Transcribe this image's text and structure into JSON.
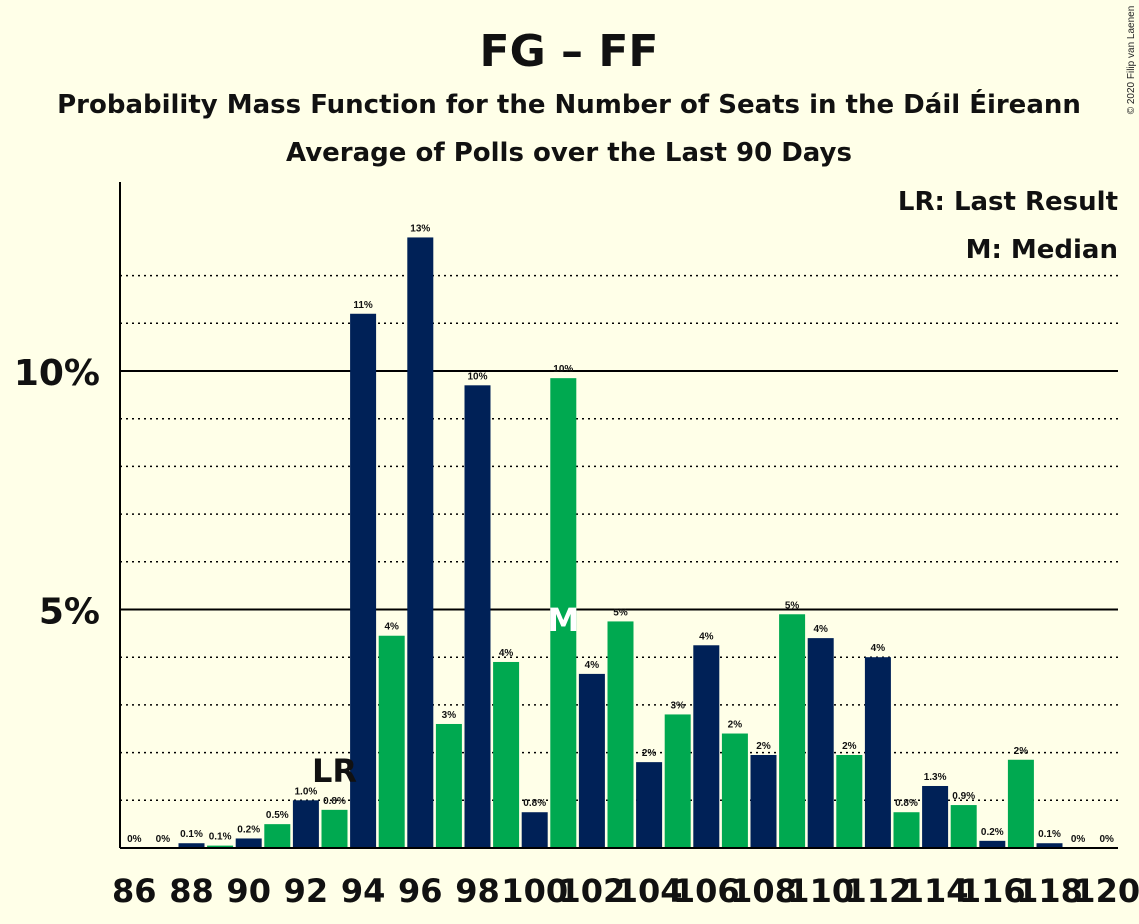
{
  "chart_data": {
    "type": "bar",
    "title": "FG – FF",
    "subtitle": "Probability Mass Function for the Number of Seats in the Dáil Éireann",
    "subtitle2": "Average of Polls over the Last 90 Days",
    "copyright": "© 2020 Filip van Laenen",
    "legend": [
      "LR: Last Result",
      "M: Median"
    ],
    "xlabel": "",
    "ylabel": "",
    "ylim": [
      0,
      14
    ],
    "y_ticks": [
      {
        "value": 5,
        "label": "5%"
      },
      {
        "value": 10,
        "label": "10%"
      }
    ],
    "x_tick_labels": [
      "86",
      "88",
      "90",
      "92",
      "94",
      "96",
      "98",
      "100",
      "102",
      "104",
      "106",
      "108",
      "110",
      "112",
      "114",
      "116",
      "118",
      "120"
    ],
    "last_result_seat": 93,
    "last_result_marker": "LR",
    "median_seat": 101,
    "median_marker": "M",
    "colors": {
      "dark": "#002157",
      "green": "#00a950",
      "background": "#ffffe8"
    },
    "bars": [
      {
        "seat": 86,
        "value": 0,
        "label": "0%"
      },
      {
        "seat": 87,
        "value": 0,
        "label": "0%"
      },
      {
        "seat": 88,
        "value": 0.1,
        "label": "0.1%"
      },
      {
        "seat": 89,
        "value": 0.05,
        "label": "0.1%"
      },
      {
        "seat": 90,
        "value": 0.2,
        "label": "0.2%"
      },
      {
        "seat": 91,
        "value": 0.5,
        "label": "0.5%"
      },
      {
        "seat": 92,
        "value": 1.0,
        "label": "1.0%"
      },
      {
        "seat": 93,
        "value": 0.8,
        "label": "0.8%"
      },
      {
        "seat": 94,
        "value": 11.2,
        "label": "11%"
      },
      {
        "seat": 95,
        "value": 4.45,
        "label": "4%"
      },
      {
        "seat": 96,
        "value": 12.8,
        "label": "13%"
      },
      {
        "seat": 97,
        "value": 2.6,
        "label": "3%"
      },
      {
        "seat": 98,
        "value": 9.7,
        "label": "10%"
      },
      {
        "seat": 99,
        "value": 3.9,
        "label": "4%"
      },
      {
        "seat": 100,
        "value": 0.75,
        "label": "0.8%"
      },
      {
        "seat": 101,
        "value": 9.85,
        "label": "10%"
      },
      {
        "seat": 102,
        "value": 3.65,
        "label": "4%"
      },
      {
        "seat": 103,
        "value": 4.75,
        "label": "5%"
      },
      {
        "seat": 104,
        "value": 1.8,
        "label": "2%"
      },
      {
        "seat": 105,
        "value": 2.8,
        "label": "3%"
      },
      {
        "seat": 106,
        "value": 4.25,
        "label": "4%"
      },
      {
        "seat": 107,
        "value": 2.4,
        "label": "2%"
      },
      {
        "seat": 108,
        "value": 1.95,
        "label": "2%"
      },
      {
        "seat": 109,
        "value": 4.9,
        "label": "5%"
      },
      {
        "seat": 110,
        "value": 4.4,
        "label": "4%"
      },
      {
        "seat": 111,
        "value": 1.95,
        "label": "2%"
      },
      {
        "seat": 112,
        "value": 4.0,
        "label": "4%"
      },
      {
        "seat": 113,
        "value": 0.75,
        "label": "0.8%"
      },
      {
        "seat": 114,
        "value": 1.3,
        "label": "1.3%"
      },
      {
        "seat": 115,
        "value": 0.9,
        "label": "0.9%"
      },
      {
        "seat": 116,
        "value": 0.15,
        "label": "0.2%"
      },
      {
        "seat": 117,
        "value": 1.85,
        "label": "2%"
      },
      {
        "seat": 118,
        "value": 0.1,
        "label": "0.1%"
      },
      {
        "seat": 119,
        "value": 0,
        "label": "0%"
      },
      {
        "seat": 120,
        "value": 0,
        "label": "0%"
      }
    ]
  }
}
